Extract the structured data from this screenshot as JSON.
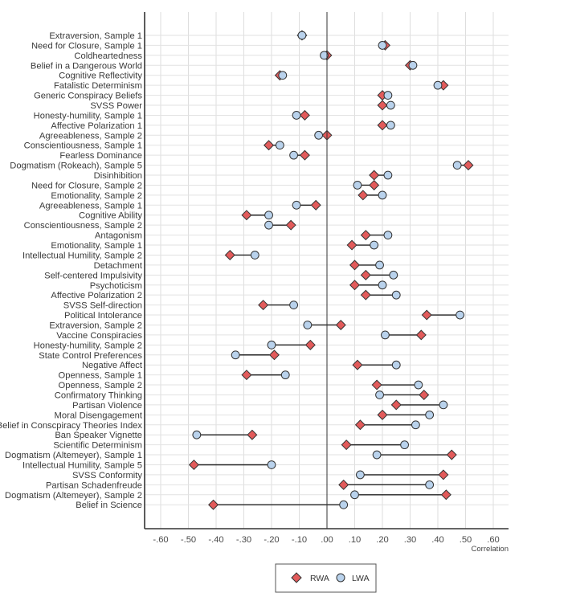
{
  "chart_data": {
    "type": "dumbbell",
    "title": "",
    "xlabel": "Correlation",
    "ylabel": "",
    "xlim": [
      -0.66,
      0.66
    ],
    "xticks": [
      -0.6,
      -0.5,
      -0.4,
      -0.3,
      -0.2,
      -0.1,
      0.0,
      0.1,
      0.2,
      0.3,
      0.4,
      0.5,
      0.6
    ],
    "xtick_labels": [
      "-.60",
      "-.50",
      "-.40",
      "-.30",
      "-.20",
      "-.10",
      ".00",
      ".10",
      ".20",
      ".30",
      ".40",
      ".50",
      ".60"
    ],
    "grid": true,
    "legend_position": "bottom-center",
    "series": [
      {
        "name": "RWA",
        "marker": "diamond",
        "color": "#E25B5B"
      },
      {
        "name": "LWA",
        "marker": "circle",
        "color": "#B9D2EC"
      }
    ],
    "categories": [
      "Extraversion, Sample 1",
      "Need for Closure, Sample 1",
      "Coldheartedness",
      "Belief in a Dangerous World",
      "Cognitive Reflectivity",
      "Fatalistic Determinism",
      "Generic Conspiracy Beliefs",
      "SVSS Power",
      "Honesty-humility, Sample 1",
      "Affective Polarization 1",
      "Agreeableness, Sample 2",
      "Conscientiousness, Sample 1",
      "Fearless Dominance",
      "Dogmatism (Rokeach), Sample 5",
      "Disinhibition",
      "Need for Closure, Sample 2",
      "Emotionality, Sample 2",
      "Agreeableness, Sample 1",
      "Cognitive Ability",
      "Conscientiousness, Sample 2",
      "Antagonism",
      "Emotionality, Sample 1",
      "Intellectual Humility, Sample 2",
      "Detachment",
      "Self-centered Impulsivity",
      "Psychoticism",
      "Affective Polarization 2",
      "SVSS Self-direction",
      "Political Intolerance",
      "Extraversion, Sample 2",
      "Vaccine Conspiracies",
      "Honesty-humility, Sample 2",
      "State Control Preferences",
      "Negative Affect",
      "Openness, Sample 1",
      "Openness, Sample 2",
      "Confirmatory Thinking",
      "Partisan Violence",
      "Moral Disengagement",
      "Belief in Conscpiracy Theories Index",
      "Ban Speaker Vignette",
      "Scientific Determinism",
      "Dogmatism (Altemeyer), Sample 1",
      "Intellectual Humility, Sample 5",
      "SVSS Conformity",
      "Partisan Schadenfreude",
      "Dogmatism (Altemeyer), Sample 2",
      "Belief in Science"
    ],
    "rwa": [
      -0.09,
      0.21,
      0.0,
      0.3,
      -0.17,
      0.42,
      0.2,
      0.2,
      -0.08,
      0.2,
      0.0,
      -0.21,
      -0.08,
      0.51,
      0.17,
      0.17,
      0.13,
      -0.04,
      -0.29,
      -0.13,
      0.14,
      0.09,
      -0.35,
      0.1,
      0.14,
      0.1,
      0.14,
      -0.23,
      0.36,
      0.05,
      0.34,
      -0.06,
      -0.19,
      0.11,
      -0.29,
      0.18,
      0.35,
      0.25,
      0.2,
      0.12,
      -0.27,
      0.07,
      0.45,
      -0.48,
      0.42,
      0.06,
      0.43,
      -0.41
    ],
    "lwa": [
      -0.09,
      0.2,
      -0.01,
      0.31,
      -0.16,
      0.4,
      0.22,
      0.23,
      -0.11,
      0.23,
      -0.03,
      -0.17,
      -0.12,
      0.47,
      0.22,
      0.11,
      0.2,
      -0.11,
      -0.21,
      -0.21,
      0.22,
      0.17,
      -0.26,
      0.19,
      0.24,
      0.2,
      0.25,
      -0.12,
      0.48,
      -0.07,
      0.21,
      -0.2,
      -0.33,
      0.25,
      -0.15,
      0.33,
      0.19,
      0.42,
      0.37,
      0.32,
      -0.47,
      0.28,
      0.18,
      -0.2,
      0.12,
      0.37,
      0.1,
      0.06
    ]
  },
  "legend": {
    "items": [
      {
        "label": "RWA",
        "icon": "diamond-marker"
      },
      {
        "label": "LWA",
        "icon": "circle-marker"
      }
    ]
  }
}
